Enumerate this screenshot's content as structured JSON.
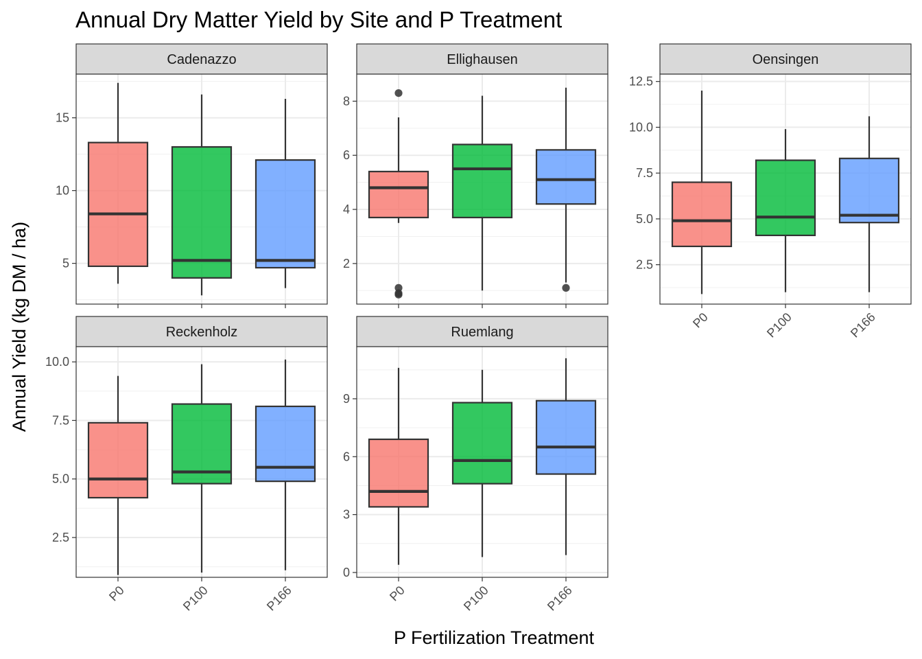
{
  "chart_data": {
    "type": "boxplot",
    "title": "Annual Dry Matter Yield by Site and P Treatment",
    "xlabel": "P Fertilization Treatment",
    "ylabel": "Annual Yield (kg DM / ha)",
    "categories": [
      "P0",
      "P100",
      "P166"
    ],
    "legend": "none",
    "grid": true,
    "colors": {
      "P0": "#F8766D",
      "P100": "#00BA38",
      "P166": "#619CFF"
    },
    "panels": [
      {
        "site": "Cadenazzo",
        "ylim": [
          2.2,
          18.0
        ],
        "yticks": [
          5,
          10,
          15
        ],
        "ytick_labels": [
          "5",
          "10",
          "15"
        ],
        "boxes": [
          {
            "treatment": "P0",
            "whisker_low": 3.6,
            "q1": 4.8,
            "median": 8.4,
            "q3": 13.3,
            "whisker_high": 17.4,
            "outliers": []
          },
          {
            "treatment": "P100",
            "whisker_low": 2.8,
            "q1": 4.0,
            "median": 5.2,
            "q3": 13.0,
            "whisker_high": 16.6,
            "outliers": []
          },
          {
            "treatment": "P166",
            "whisker_low": 3.3,
            "q1": 4.7,
            "median": 5.2,
            "q3": 12.1,
            "whisker_high": 16.3,
            "outliers": []
          }
        ]
      },
      {
        "site": "Ellighausen",
        "ylim": [
          0.5,
          9.0
        ],
        "yticks": [
          2,
          4,
          6,
          8
        ],
        "ytick_labels": [
          "2",
          "4",
          "6",
          "8"
        ],
        "boxes": [
          {
            "treatment": "P0",
            "whisker_low": 3.5,
            "q1": 3.7,
            "median": 4.8,
            "q3": 5.4,
            "whisker_high": 7.4,
            "outliers": [
              8.3,
              1.1,
              0.9,
              0.85
            ]
          },
          {
            "treatment": "P100",
            "whisker_low": 1.0,
            "q1": 3.7,
            "median": 5.5,
            "q3": 6.4,
            "whisker_high": 8.2,
            "outliers": []
          },
          {
            "treatment": "P166",
            "whisker_low": 1.3,
            "q1": 4.2,
            "median": 5.1,
            "q3": 6.2,
            "whisker_high": 8.5,
            "outliers": [
              1.1
            ]
          }
        ]
      },
      {
        "site": "Oensingen",
        "ylim": [
          0.35,
          12.9
        ],
        "yticks": [
          2.5,
          5.0,
          7.5,
          10.0,
          12.5
        ],
        "ytick_labels": [
          "2.5",
          "5.0",
          "7.5",
          "10.0",
          "12.5"
        ],
        "boxes": [
          {
            "treatment": "P0",
            "whisker_low": 0.9,
            "q1": 3.5,
            "median": 4.9,
            "q3": 7.0,
            "whisker_high": 12.0,
            "outliers": []
          },
          {
            "treatment": "P100",
            "whisker_low": 1.0,
            "q1": 4.1,
            "median": 5.1,
            "q3": 8.2,
            "whisker_high": 9.9,
            "outliers": []
          },
          {
            "treatment": "P166",
            "whisker_low": 1.0,
            "q1": 4.8,
            "median": 5.2,
            "q3": 8.3,
            "whisker_high": 10.6,
            "outliers": []
          }
        ]
      },
      {
        "site": "Reckenholz",
        "ylim": [
          0.8,
          10.65
        ],
        "yticks": [
          2.5,
          5.0,
          7.5,
          10.0
        ],
        "ytick_labels": [
          "2.5",
          "5.0",
          "7.5",
          "10.0"
        ],
        "boxes": [
          {
            "treatment": "P0",
            "whisker_low": 0.9,
            "q1": 4.2,
            "median": 5.0,
            "q3": 7.4,
            "whisker_high": 9.4,
            "outliers": []
          },
          {
            "treatment": "P100",
            "whisker_low": 1.0,
            "q1": 4.8,
            "median": 5.3,
            "q3": 8.2,
            "whisker_high": 9.9,
            "outliers": []
          },
          {
            "treatment": "P166",
            "whisker_low": 1.1,
            "q1": 4.9,
            "median": 5.5,
            "q3": 8.1,
            "whisker_high": 10.1,
            "outliers": []
          }
        ]
      },
      {
        "site": "Ruemlang",
        "ylim": [
          -0.25,
          11.7
        ],
        "yticks": [
          0,
          3,
          6,
          9
        ],
        "ytick_labels": [
          "0",
          "3",
          "6",
          "9"
        ],
        "boxes": [
          {
            "treatment": "P0",
            "whisker_low": 0.4,
            "q1": 3.4,
            "median": 4.2,
            "q3": 6.9,
            "whisker_high": 10.6,
            "outliers": []
          },
          {
            "treatment": "P100",
            "whisker_low": 0.8,
            "q1": 4.6,
            "median": 5.8,
            "q3": 8.8,
            "whisker_high": 10.5,
            "outliers": []
          },
          {
            "treatment": "P166",
            "whisker_low": 0.9,
            "q1": 5.1,
            "median": 6.5,
            "q3": 8.9,
            "whisker_high": 11.1,
            "outliers": []
          }
        ]
      }
    ]
  }
}
